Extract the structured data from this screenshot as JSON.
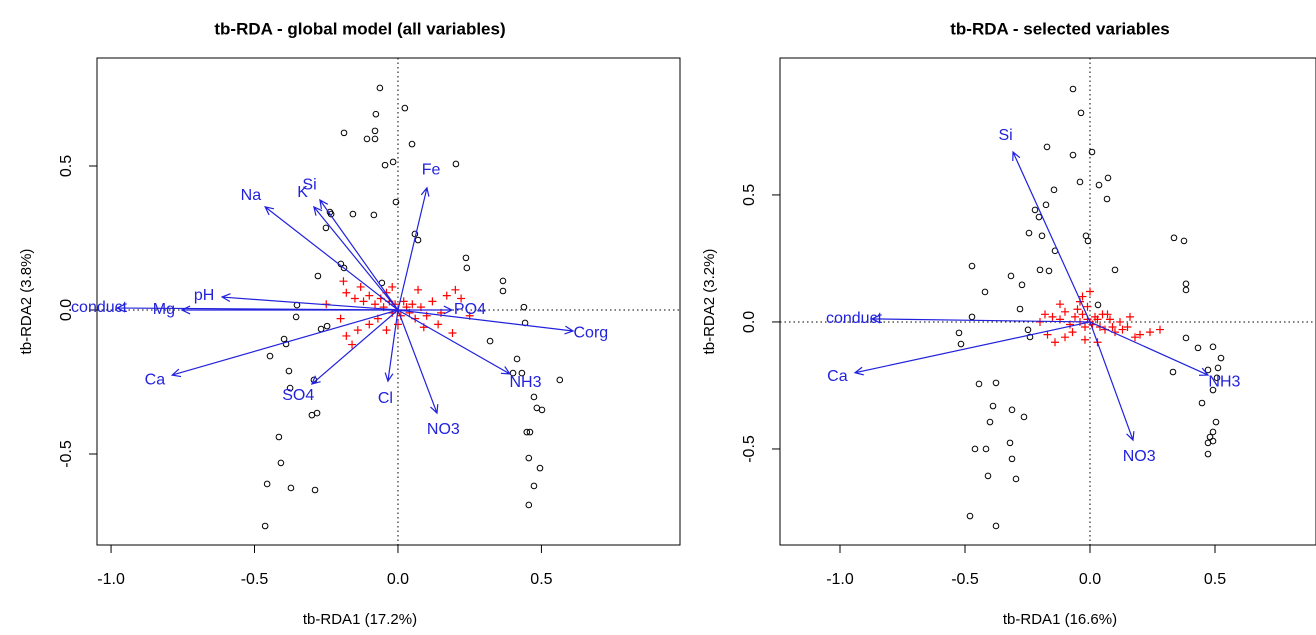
{
  "chart_data": [
    {
      "type": "biplot",
      "title": "tb-RDA - global model (all variables)",
      "xlabel": "tb-RDA1 (17.2%)",
      "ylabel": "tb-RDA2 (3.8%)",
      "xlim": [
        -1.049,
        0.983
      ],
      "ylim": [
        -0.816,
        0.875
      ],
      "xticks": [
        {
          "value": -1.0,
          "label": "-1.0"
        },
        -0.5,
        {
          "value": 0.0,
          "label": "0.0"
        },
        0.5
      ],
      "yticks": [
        -0.5,
        {
          "value": 0.0,
          "label": "0.0"
        },
        0.5
      ],
      "sites": {
        "color": "#000000",
        "x": [
          -0.063,
          0.024,
          -0.077,
          -0.188,
          -0.08,
          -0.108,
          -0.08,
          0.049,
          -0.017,
          0.202,
          -0.045,
          -0.237,
          -0.233,
          -0.157,
          -0.084,
          -0.007,
          -0.251,
          0.059,
          0.07,
          0.237,
          0.24,
          -0.199,
          -0.188,
          -0.279,
          -0.056,
          0.366,
          0.366,
          -0.352,
          0.439,
          -0.355,
          -0.397,
          -0.39,
          -0.247,
          -0.268,
          -0.446,
          0.443,
          0.321,
          0.415,
          0.432,
          0.401,
          0.474,
          0.484,
          0.502,
          0.564,
          0.46,
          0.449,
          -0.38,
          -0.376,
          -0.293,
          -0.3,
          -0.282,
          -0.415,
          0.456,
          0.495,
          -0.408,
          -0.456,
          -0.373,
          -0.289,
          0.474,
          0.456,
          -0.463
        ],
        "y": [
          0.771,
          0.701,
          0.68,
          0.615,
          0.622,
          0.594,
          0.594,
          0.576,
          0.514,
          0.507,
          0.503,
          0.34,
          0.333,
          0.333,
          0.33,
          0.375,
          0.285,
          0.264,
          0.243,
          0.181,
          0.146,
          0.16,
          0.146,
          0.118,
          0.094,
          0.101,
          0.066,
          0.017,
          0.01,
          -0.024,
          -0.101,
          -0.118,
          -0.056,
          -0.066,
          -0.16,
          -0.045,
          -0.108,
          -0.17,
          -0.219,
          -0.219,
          -0.302,
          -0.34,
          -0.347,
          -0.243,
          -0.424,
          -0.424,
          -0.212,
          -0.271,
          -0.243,
          -0.365,
          -0.358,
          -0.441,
          -0.514,
          -0.549,
          -0.531,
          -0.604,
          -0.618,
          -0.625,
          -0.611,
          -0.677,
          -0.75
        ]
      },
      "species": {
        "color": "#ff0000",
        "x": [
          -0.18,
          -0.15,
          -0.12,
          -0.1,
          -0.08,
          -0.06,
          -0.05,
          -0.04,
          -0.03,
          -0.02,
          -0.01,
          0.0,
          0.01,
          0.02,
          0.03,
          0.04,
          0.05,
          0.06,
          0.08,
          0.1,
          0.12,
          0.15,
          0.2,
          0.22,
          0.25,
          0.19,
          0.14,
          -0.07,
          -0.1,
          -0.14,
          -0.18,
          -0.2,
          -0.25,
          -0.19,
          -0.13,
          0.07,
          -0.04,
          0.0,
          0.09,
          -0.16,
          0.17,
          -0.02
        ],
        "y": [
          0.06,
          0.04,
          0.03,
          0.05,
          0.02,
          0.04,
          0.01,
          0.06,
          0.03,
          -0.01,
          0.02,
          0.0,
          -0.02,
          0.03,
          0.01,
          -0.01,
          0.02,
          -0.03,
          0.01,
          -0.02,
          0.03,
          -0.01,
          0.07,
          0.04,
          -0.02,
          -0.08,
          -0.05,
          -0.03,
          -0.05,
          -0.07,
          -0.09,
          -0.03,
          0.02,
          0.1,
          0.08,
          0.07,
          -0.07,
          -0.05,
          -0.06,
          -0.12,
          0.05,
          0.08
        ]
      },
      "arrows": {
        "color": "#2222dd",
        "labels": [
          "Na",
          "K",
          "Si",
          "Fe",
          "pH",
          "conduct",
          "Mg",
          "PO4",
          "Corg",
          "NH3",
          "NO3",
          "Cl",
          "SO4",
          "Ca"
        ],
        "x": [
          -0.463,
          -0.293,
          -0.272,
          0.101,
          -0.613,
          -0.979,
          -0.753,
          0.188,
          0.61,
          0.39,
          0.136,
          -0.035,
          -0.3,
          -0.787
        ],
        "y": [
          0.358,
          0.358,
          0.382,
          0.424,
          0.045,
          0.007,
          0.0,
          0.0,
          -0.073,
          -0.222,
          -0.358,
          -0.247,
          -0.257,
          -0.226
        ]
      }
    },
    {
      "type": "biplot",
      "title": "tb-RDA - selected variables",
      "xlabel": "tb-RDA1 (16.6%)",
      "ylabel": "tb-RDA2 (3.2%)",
      "xlim": [
        -1.24,
        0.904
      ],
      "ylim": [
        -0.878,
        1.039
      ],
      "xticks": [
        {
          "value": -1.0,
          "label": "-1.0"
        },
        -0.5,
        {
          "value": 0.0,
          "label": "0.0"
        },
        0.5
      ],
      "yticks": [
        -0.5,
        {
          "value": 0.0,
          "label": "0.0"
        },
        0.5
      ],
      "sites": {
        "color": "#000000",
        "x": [
          -0.068,
          -0.036,
          0.008,
          -0.172,
          -0.068,
          -0.04,
          0.036,
          0.072,
          0.068,
          -0.144,
          -0.22,
          -0.176,
          -0.204,
          -0.244,
          -0.192,
          -0.016,
          -0.008,
          -0.14,
          0.336,
          0.376,
          0.384,
          0.384,
          0.1,
          0.032,
          -0.2,
          -0.164,
          -0.472,
          -0.316,
          -0.272,
          -0.42,
          -0.28,
          -0.472,
          -0.524,
          -0.516,
          -0.248,
          -0.24,
          0.384,
          0.432,
          0.492,
          0.524,
          0.512,
          0.472,
          0.332,
          0.508,
          0.492,
          0.448,
          0.504,
          0.48,
          0.472,
          0.492,
          0.472,
          0.492,
          -0.444,
          -0.376,
          -0.388,
          -0.312,
          -0.264,
          -0.4,
          -0.46,
          -0.416,
          -0.32,
          -0.312,
          -0.408,
          -0.296,
          -0.48,
          -0.376
        ],
        "y": [
          0.917,
          0.823,
          0.669,
          0.689,
          0.657,
          0.551,
          0.539,
          0.567,
          0.484,
          0.52,
          0.441,
          0.461,
          0.413,
          0.35,
          0.339,
          0.339,
          0.319,
          0.28,
          0.331,
          0.319,
          0.15,
          0.126,
          0.205,
          0.067,
          0.205,
          0.201,
          0.22,
          0.181,
          0.146,
          0.118,
          0.051,
          0.02,
          -0.043,
          -0.087,
          -0.031,
          -0.059,
          -0.063,
          -0.102,
          -0.098,
          -0.142,
          -0.181,
          -0.189,
          -0.197,
          -0.22,
          -0.268,
          -0.319,
          -0.394,
          -0.453,
          -0.476,
          -0.469,
          -0.52,
          -0.433,
          -0.244,
          -0.24,
          -0.331,
          -0.346,
          -0.374,
          -0.394,
          -0.5,
          -0.5,
          -0.476,
          -0.539,
          -0.606,
          -0.618,
          -0.764,
          -0.803
        ]
      },
      "species": {
        "color": "#ff0000",
        "x": [
          -0.18,
          -0.15,
          -0.12,
          -0.1,
          -0.08,
          -0.06,
          -0.05,
          -0.04,
          -0.03,
          -0.02,
          -0.01,
          0.0,
          0.01,
          0.02,
          0.03,
          0.04,
          0.05,
          0.06,
          0.08,
          0.1,
          0.12,
          0.15,
          0.2,
          0.24,
          0.28,
          0.18,
          0.13,
          -0.07,
          -0.1,
          -0.14,
          -0.17,
          -0.2,
          -0.04,
          -0.03,
          -0.01,
          0.0,
          -0.02,
          0.07,
          0.09,
          -0.12,
          0.16,
          0.03
        ],
        "y": [
          0.03,
          0.02,
          0.01,
          0.04,
          -0.01,
          0.02,
          0.05,
          0.0,
          0.03,
          -0.02,
          0.01,
          0.0,
          -0.01,
          0.02,
          0.01,
          -0.02,
          0.03,
          -0.03,
          0.01,
          -0.04,
          0.0,
          -0.02,
          -0.05,
          -0.04,
          -0.03,
          -0.06,
          -0.03,
          -0.04,
          -0.06,
          -0.08,
          -0.05,
          0.0,
          0.08,
          0.1,
          0.06,
          0.12,
          -0.07,
          0.03,
          -0.02,
          0.07,
          0.02,
          -0.08
        ]
      },
      "arrows": {
        "color": "#2222dd",
        "labels": [
          "Si",
          "conduct",
          "Ca",
          "NH3",
          "NO3"
        ],
        "x": [
          -0.308,
          -0.872,
          -0.94,
          0.472,
          0.172
        ],
        "y": [
          0.669,
          0.012,
          -0.2,
          -0.209,
          -0.465
        ]
      }
    }
  ]
}
